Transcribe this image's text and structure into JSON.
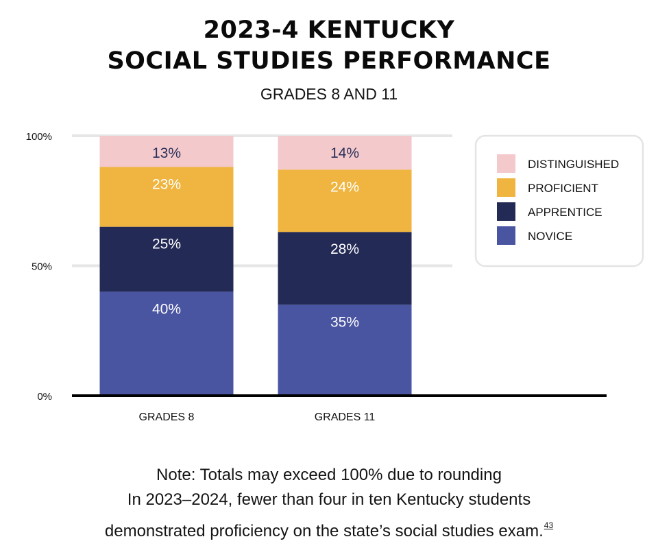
{
  "chart_data": {
    "type": "bar",
    "stacked": true,
    "title": "2023-4 KENTUCKY SOCIAL STUDIES PERFORMANCE",
    "title_lines": [
      "2023-4 KENTUCKY",
      "SOCIAL STUDIES PERFORMANCE"
    ],
    "subtitle": "GRADES 8 AND 11",
    "categories": [
      "GRADES 8",
      "GRADES 11"
    ],
    "ylim": [
      0,
      100
    ],
    "yticks": [
      {
        "value": 0,
        "label": "0%"
      },
      {
        "value": 50,
        "label": "50%"
      },
      {
        "value": 100,
        "label": "100%"
      }
    ],
    "grid": true,
    "legend_position": "top-right",
    "series": [
      {
        "name": "NOVICE",
        "color": "#4a55a2",
        "label_color": "#ffffff",
        "values": [
          40,
          35
        ],
        "labels": [
          "40%",
          "35%"
        ]
      },
      {
        "name": "APPRENTICE",
        "color": "#232a55",
        "label_color": "#ffffff",
        "values": [
          25,
          28
        ],
        "labels": [
          "25%",
          "28%"
        ]
      },
      {
        "name": "PROFICIENT",
        "color": "#efb540",
        "label_color": "#ffffff",
        "values": [
          23,
          24
        ],
        "labels": [
          "23%",
          "24%"
        ]
      },
      {
        "name": "DISTINGUISHED",
        "color": "#f3c9cc",
        "label_color": "#2a2f5a",
        "values": [
          13,
          14
        ],
        "labels": [
          "13%",
          "14%"
        ]
      }
    ]
  },
  "notes": {
    "line1": "Note: Totals may exceed 100% due to rounding",
    "line2": "In 2023–2024, fewer than four in ten Kentucky students",
    "line3": "demonstrated proficiency on the state’s social studies exam.",
    "footnote": "43"
  }
}
